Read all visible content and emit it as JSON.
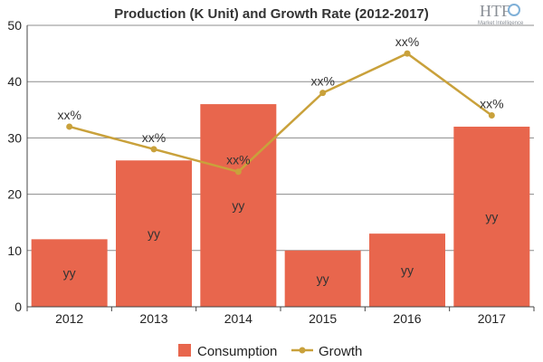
{
  "chart_data": {
    "type": "bar",
    "title": "Production (K Unit) and Growth Rate (2012-2017)",
    "categories": [
      "2012",
      "2013",
      "2014",
      "2015",
      "2016",
      "2017"
    ],
    "ylim": [
      0,
      50
    ],
    "yticks": [
      0,
      10,
      20,
      30,
      40,
      50
    ],
    "grid": true,
    "legend_position": "bottom",
    "series": [
      {
        "name": "Consumption",
        "type": "bar",
        "values": [
          12,
          26,
          36,
          10,
          13,
          32
        ],
        "data_labels": [
          "yy",
          "yy",
          "yy",
          "yy",
          "yy",
          "yy"
        ],
        "color": "#e8664d"
      },
      {
        "name": "Growth",
        "type": "line",
        "values": [
          32,
          28,
          24,
          38,
          45,
          34
        ],
        "data_labels": [
          "xx%",
          "xx%",
          "xx%",
          "xx%",
          "xx%",
          "xx%"
        ],
        "color": "#c9a13b"
      }
    ]
  },
  "logo": {
    "text": "HTF",
    "subtext": "Market Intelligence"
  },
  "colors": {
    "grid": "#8c8c8c",
    "axis": "#444444"
  }
}
